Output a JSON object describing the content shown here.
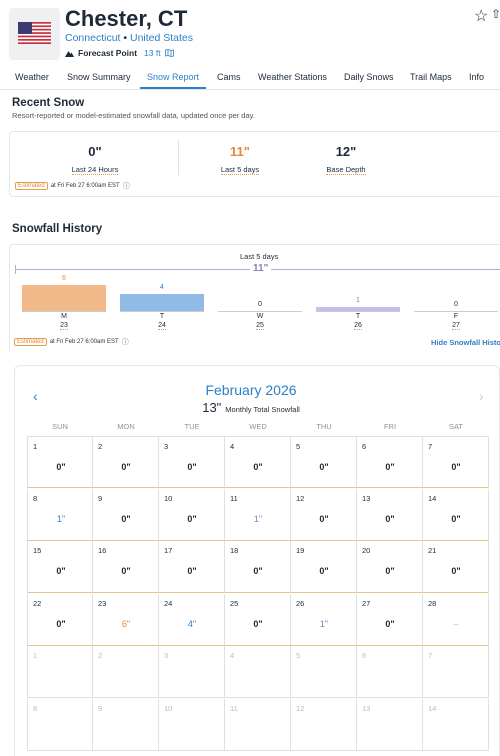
{
  "header": {
    "city": "Chester, CT",
    "state": "Connecticut",
    "separator": "•",
    "country": "United States",
    "forecast_label": "Forecast Point",
    "elevation": "13 ft"
  },
  "tabs": [
    {
      "label": "Weather"
    },
    {
      "label": "Snow Summary"
    },
    {
      "label": "Snow Report"
    },
    {
      "label": "Cams"
    },
    {
      "label": "Weather Stations"
    },
    {
      "label": "Daily Snows"
    },
    {
      "label": "Trail Maps"
    },
    {
      "label": "Info"
    }
  ],
  "active_tab": "Snow Report",
  "recent_snow": {
    "title": "Recent Snow",
    "subtitle": "Resort-reported or model-estimated snowfall data, updated once per day.",
    "stats": [
      {
        "value": "0\"",
        "label": "Last 24 Hours"
      },
      {
        "value": "11\"",
        "label": "Last 5 days"
      },
      {
        "value": "12\"",
        "label": "Base Depth"
      }
    ],
    "estimated_badge": "Estimated",
    "timestamp": "at Fri Feb 27 6:00am EST"
  },
  "history": {
    "title": "Snowfall History",
    "range_label": "Last 5 days",
    "total": "11\"",
    "days": [
      {
        "letter": "M",
        "date": "23",
        "value": 6,
        "label": "6",
        "color": "#f2b98a"
      },
      {
        "letter": "T",
        "date": "24",
        "value": 4,
        "label": "4",
        "color": "#8fbbe6"
      },
      {
        "letter": "W",
        "date": "25",
        "value": 0,
        "label": "0",
        "color": "#c8ccd2"
      },
      {
        "letter": "T",
        "date": "26",
        "value": 1,
        "label": "1",
        "color": "#c8bde6"
      },
      {
        "letter": "F",
        "date": "27",
        "value": 0,
        "label": "0",
        "color": "#c8ccd2"
      }
    ],
    "estimated_badge": "Estimated",
    "timestamp": "at Fri Feb 27 6:00am EST",
    "hide_link": "Hide Snowfall History"
  },
  "calendar": {
    "month": "February 2026",
    "monthly_total": "13\"",
    "monthly_label": "Monthly Total Snowfall",
    "weekdays": [
      "SUN",
      "MON",
      "TUE",
      "WED",
      "THU",
      "FRI",
      "SAT"
    ],
    "days": [
      {
        "d": "1",
        "s": "0\""
      },
      {
        "d": "2",
        "s": "0\""
      },
      {
        "d": "3",
        "s": "0\""
      },
      {
        "d": "4",
        "s": "0\""
      },
      {
        "d": "5",
        "s": "0\""
      },
      {
        "d": "6",
        "s": "0\""
      },
      {
        "d": "7",
        "s": "0\""
      },
      {
        "d": "8",
        "s": "1\"",
        "c": "blue"
      },
      {
        "d": "9",
        "s": "0\""
      },
      {
        "d": "10",
        "s": "0\""
      },
      {
        "d": "11",
        "s": "1\"",
        "c": "lav"
      },
      {
        "d": "12",
        "s": "0\""
      },
      {
        "d": "13",
        "s": "0\""
      },
      {
        "d": "14",
        "s": "0\""
      },
      {
        "d": "15",
        "s": "0\""
      },
      {
        "d": "16",
        "s": "0\""
      },
      {
        "d": "17",
        "s": "0\""
      },
      {
        "d": "18",
        "s": "0\""
      },
      {
        "d": "19",
        "s": "0\""
      },
      {
        "d": "20",
        "s": "0\""
      },
      {
        "d": "21",
        "s": "0\""
      },
      {
        "d": "22",
        "s": "0\""
      },
      {
        "d": "23",
        "s": "6\"",
        "c": "orange"
      },
      {
        "d": "24",
        "s": "4\"",
        "c": "blue"
      },
      {
        "d": "25",
        "s": "0\""
      },
      {
        "d": "26",
        "s": "1\"",
        "c": "lav"
      },
      {
        "d": "27",
        "s": "0\""
      },
      {
        "d": "28",
        "s": "--",
        "c": "gray"
      },
      {
        "d": "1",
        "next": true
      },
      {
        "d": "2",
        "next": true
      },
      {
        "d": "3",
        "next": true
      },
      {
        "d": "4",
        "next": true
      },
      {
        "d": "5",
        "next": true
      },
      {
        "d": "6",
        "next": true
      },
      {
        "d": "7",
        "next": true
      },
      {
        "d": "8",
        "next": true
      },
      {
        "d": "9",
        "next": true
      },
      {
        "d": "10",
        "next": true
      },
      {
        "d": "11",
        "next": true
      },
      {
        "d": "12",
        "next": true
      },
      {
        "d": "13",
        "next": true
      },
      {
        "d": "14",
        "next": true
      }
    ]
  },
  "colors": {
    "accent": "#2f7fc6",
    "orange": "#e28a35",
    "lavender": "#8b7bc0"
  }
}
